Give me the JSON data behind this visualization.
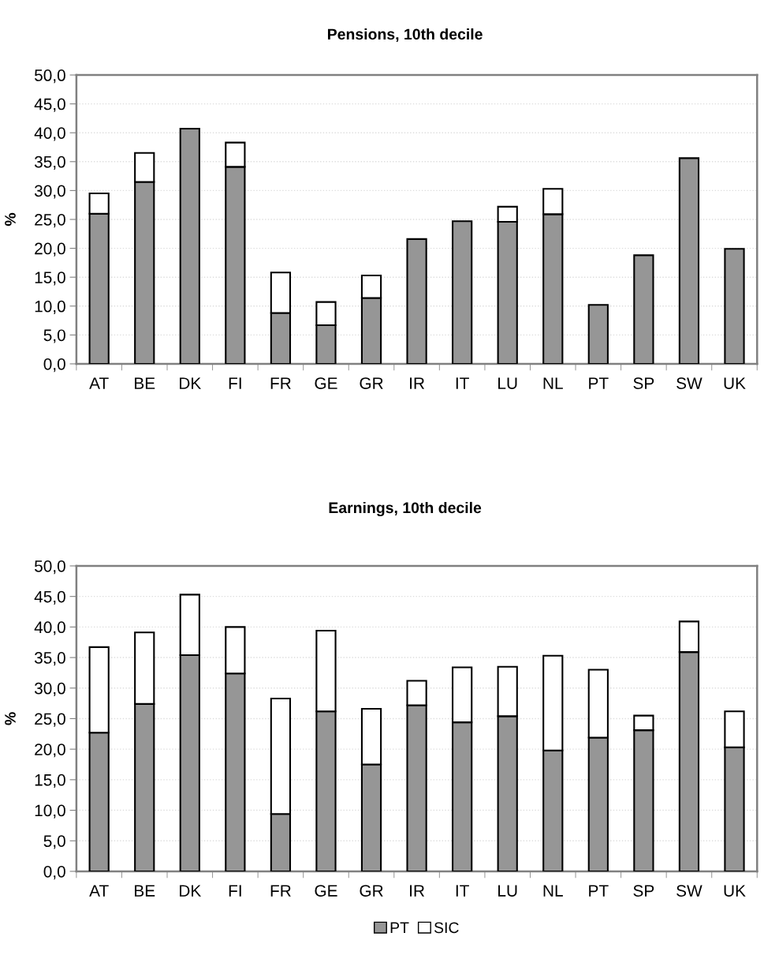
{
  "chart_data": [
    {
      "type": "bar",
      "title": "Pensions, 10th decile",
      "ylabel": "%",
      "stacked": true,
      "grid": "y",
      "legend": false,
      "categories": [
        "AT",
        "BE",
        "DK",
        "FI",
        "FR",
        "GE",
        "GR",
        "IR",
        "IT",
        "LU",
        "NL",
        "PT",
        "SP",
        "SW",
        "UK"
      ],
      "series": [
        {
          "color": "#969696",
          "values": [
            26.0,
            31.5,
            40.7,
            34.1,
            8.8,
            6.7,
            11.4,
            21.6,
            24.7,
            24.6,
            25.9,
            10.2,
            18.8,
            35.6,
            19.9
          ]
        },
        {
          "color": "#ffffff",
          "values": [
            3.5,
            5.0,
            null,
            4.2,
            7.0,
            4.0,
            3.9,
            null,
            null,
            2.6,
            4.4,
            null,
            null,
            null,
            null
          ]
        }
      ],
      "ylim": [
        0,
        50
      ],
      "yticks": [
        {
          "value": 0,
          "label": "0,0"
        },
        {
          "value": 5,
          "label": "5,0"
        },
        {
          "value": 10,
          "label": "10,0"
        },
        {
          "value": 15,
          "label": "15,0"
        },
        {
          "value": 20,
          "label": "20,0"
        },
        {
          "value": 25,
          "label": "25,0"
        },
        {
          "value": 30,
          "label": "30,0"
        },
        {
          "value": 35,
          "label": "35,0"
        },
        {
          "value": 40,
          "label": "40,0"
        },
        {
          "value": 45,
          "label": "45,0"
        },
        {
          "value": 50,
          "label": "50,0"
        }
      ]
    },
    {
      "type": "bar",
      "title": "Earnings, 10th decile",
      "ylabel": "%",
      "stacked": true,
      "grid": "y",
      "legend": "bottom",
      "categories": [
        "AT",
        "BE",
        "DK",
        "FI",
        "FR",
        "GE",
        "GR",
        "IR",
        "IT",
        "LU",
        "NL",
        "PT",
        "SP",
        "SW",
        "UK"
      ],
      "series": [
        {
          "name": "PT",
          "color": "#969696",
          "values": [
            22.7,
            27.4,
            35.4,
            32.4,
            9.4,
            26.2,
            17.5,
            27.2,
            24.4,
            25.4,
            19.8,
            21.9,
            23.1,
            35.9,
            20.3
          ]
        },
        {
          "name": "SIC",
          "color": "#ffffff",
          "values": [
            14.0,
            11.7,
            9.9,
            7.6,
            18.9,
            13.2,
            9.1,
            4.0,
            9.0,
            8.1,
            15.5,
            11.1,
            2.4,
            5.0,
            5.9
          ]
        }
      ],
      "ylim": [
        0,
        50
      ],
      "yticks": [
        {
          "value": 0,
          "label": "0,0"
        },
        {
          "value": 5,
          "label": "5,0"
        },
        {
          "value": 10,
          "label": "10,0"
        },
        {
          "value": 15,
          "label": "15,0"
        },
        {
          "value": 20,
          "label": "20,0"
        },
        {
          "value": 25,
          "label": "25,0"
        },
        {
          "value": 30,
          "label": "30,0"
        },
        {
          "value": 35,
          "label": "35,0"
        },
        {
          "value": 40,
          "label": "40,0"
        },
        {
          "value": 45,
          "label": "45,0"
        },
        {
          "value": 50,
          "label": "50,0"
        }
      ]
    }
  ]
}
